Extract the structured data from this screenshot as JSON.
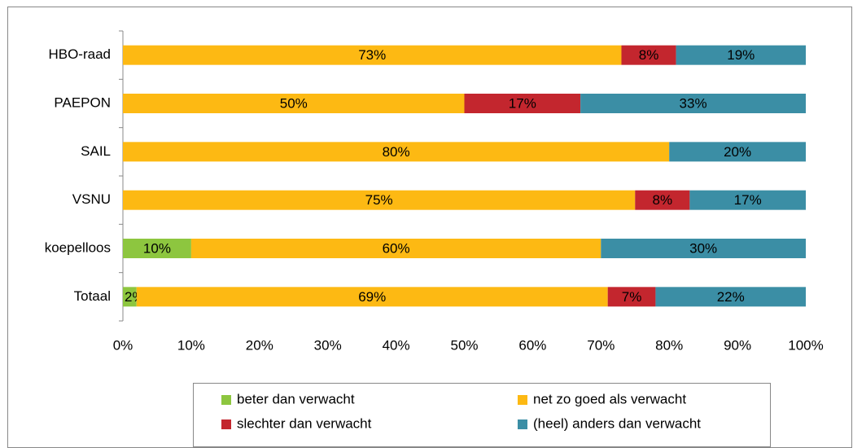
{
  "chart_data": {
    "type": "stacked_bar_horizontal",
    "categories": [
      "HBO-raad",
      "PAEPON",
      "SAIL",
      "VSNU",
      "koepelloos",
      "Totaal"
    ],
    "series": [
      {
        "name": "beter dan verwacht",
        "color": "#8dc63f",
        "label_color": "#000000",
        "values": [
          0,
          0,
          0,
          0,
          10,
          2
        ],
        "value_labels": [
          null,
          null,
          null,
          null,
          "10%",
          "2%"
        ]
      },
      {
        "name": "net zo goed als verwacht",
        "color": "#fdb913",
        "label_color": "#000000",
        "values": [
          73,
          50,
          80,
          75,
          60,
          69
        ],
        "value_labels": [
          "73%",
          "50%",
          "80%",
          "75%",
          "60%",
          "69%"
        ]
      },
      {
        "name": "slechter dan verwacht",
        "color": "#c3262e",
        "label_color": "#ffffff",
        "values": [
          8,
          17,
          0,
          8,
          0,
          7
        ],
        "value_labels": [
          "8%",
          "17%",
          null,
          "8%",
          null,
          "7%"
        ]
      },
      {
        "name": "(heel) anders dan verwacht",
        "color": "#3b8ea5",
        "label_color": "#ffffff",
        "values": [
          19,
          33,
          20,
          17,
          30,
          22
        ],
        "value_labels": [
          "19%",
          "33%",
          "20%",
          "17%",
          "30%",
          "22%"
        ]
      }
    ],
    "xlim": [
      0,
      100
    ],
    "xticks": [
      {
        "value": 0,
        "label": "0%"
      },
      {
        "value": 10,
        "label": "10%"
      },
      {
        "value": 20,
        "label": "20%"
      },
      {
        "value": 30,
        "label": "30%"
      },
      {
        "value": 40,
        "label": "40%"
      },
      {
        "value": 50,
        "label": "50%"
      },
      {
        "value": 60,
        "label": "60%"
      },
      {
        "value": 70,
        "label": "70%"
      },
      {
        "value": 80,
        "label": "80%"
      },
      {
        "value": 90,
        "label": "90%"
      },
      {
        "value": 100,
        "label": "100%"
      }
    ],
    "legend": "bottom"
  }
}
